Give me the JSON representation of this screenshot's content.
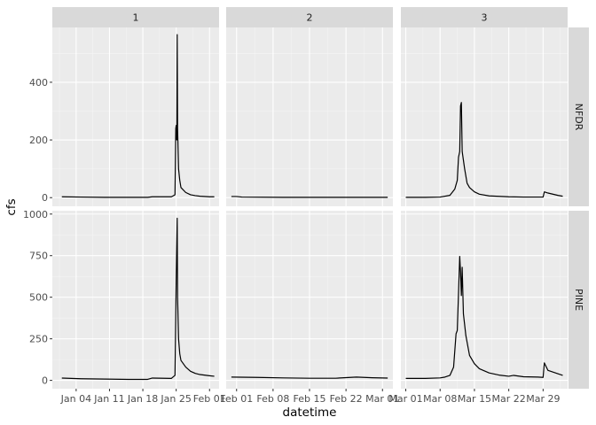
{
  "chart_data": {
    "type": "line",
    "xlabel": "datetime",
    "ylabel": "cfs",
    "columns": [
      {
        "label": "1",
        "xlim": [
          "2022-12-30",
          "2023-02-03"
        ],
        "ticks": [
          {
            "date": "2023-01-04",
            "label": "Jan 04"
          },
          {
            "date": "2023-01-11",
            "label": "Jan 11"
          },
          {
            "date": "2023-01-18",
            "label": "Jan 18"
          },
          {
            "date": "2023-01-25",
            "label": "Jan 25"
          },
          {
            "date": "2023-02-01",
            "label": "Feb 01"
          }
        ]
      },
      {
        "label": "2",
        "xlim": [
          "2023-01-30",
          "2023-03-03"
        ],
        "ticks": [
          {
            "date": "2023-02-01",
            "label": "Feb 01"
          },
          {
            "date": "2023-02-08",
            "label": "Feb 08"
          },
          {
            "date": "2023-02-15",
            "label": "Feb 15"
          },
          {
            "date": "2023-02-22",
            "label": "Feb 22"
          },
          {
            "date": "2023-03-01",
            "label": "Mar 01"
          }
        ]
      },
      {
        "label": "3",
        "xlim": [
          "2023-02-28",
          "2023-04-03"
        ],
        "ticks": [
          {
            "date": "2023-03-01",
            "label": "Mar 01"
          },
          {
            "date": "2023-03-08",
            "label": "Mar 08"
          },
          {
            "date": "2023-03-15",
            "label": "Mar 15"
          },
          {
            "date": "2023-03-22",
            "label": "Mar 22"
          },
          {
            "date": "2023-03-29",
            "label": "Mar 29"
          }
        ]
      }
    ],
    "rows": [
      {
        "label": "NFDR",
        "ylim": [
          -30,
          590
        ],
        "yticks": [
          0,
          200,
          400
        ]
      },
      {
        "label": "PINE",
        "ylim": [
          -50,
          1020
        ],
        "yticks": [
          0,
          250,
          500,
          750,
          1000
        ]
      }
    ],
    "series": [
      {
        "row": 0,
        "col": 0,
        "points": [
          [
            "2023-01-01",
            3
          ],
          [
            "2023-01-05",
            2
          ],
          [
            "2023-01-10",
            1
          ],
          [
            "2023-01-15",
            1
          ],
          [
            "2023-01-19",
            1
          ],
          [
            "2023-01-20",
            3
          ],
          [
            "2023-01-24",
            3
          ],
          [
            "2023-01-24T18:00",
            10
          ],
          [
            "2023-01-24T22:00",
            240
          ],
          [
            "2023-01-25T00:00",
            250
          ],
          [
            "2023-01-25T03:00",
            200
          ],
          [
            "2023-01-25T05:00",
            565
          ],
          [
            "2023-01-25T07:00",
            240
          ],
          [
            "2023-01-25T12:00",
            100
          ],
          [
            "2023-01-25T18:00",
            60
          ],
          [
            "2023-01-26",
            35
          ],
          [
            "2023-01-27",
            18
          ],
          [
            "2023-01-28",
            10
          ],
          [
            "2023-01-29",
            7
          ],
          [
            "2023-01-30",
            5
          ],
          [
            "2023-02-01",
            3
          ],
          [
            "2023-02-02",
            3
          ]
        ]
      },
      {
        "row": 0,
        "col": 1,
        "points": [
          [
            "2023-01-31",
            4
          ],
          [
            "2023-02-01",
            4
          ],
          [
            "2023-02-02",
            2
          ],
          [
            "2023-02-10",
            1
          ],
          [
            "2023-02-18",
            1
          ],
          [
            "2023-02-26",
            1
          ],
          [
            "2023-03-02",
            1
          ]
        ]
      },
      {
        "row": 0,
        "col": 2,
        "points": [
          [
            "2023-03-01",
            1
          ],
          [
            "2023-03-05",
            1
          ],
          [
            "2023-03-08",
            2
          ],
          [
            "2023-03-10",
            8
          ],
          [
            "2023-03-11",
            30
          ],
          [
            "2023-03-11T12:00",
            60
          ],
          [
            "2023-03-11T18:00",
            140
          ],
          [
            "2023-03-12T00:00",
            160
          ],
          [
            "2023-03-12T04:00",
            318
          ],
          [
            "2023-03-12T08:00",
            330
          ],
          [
            "2023-03-12T12:00",
            160
          ],
          [
            "2023-03-12T18:00",
            130
          ],
          [
            "2023-03-13T00:00",
            100
          ],
          [
            "2023-03-13T12:00",
            50
          ],
          [
            "2023-03-14",
            35
          ],
          [
            "2023-03-15",
            20
          ],
          [
            "2023-03-16",
            12
          ],
          [
            "2023-03-18",
            6
          ],
          [
            "2023-03-22",
            3
          ],
          [
            "2023-03-25",
            2
          ],
          [
            "2023-03-29",
            2
          ],
          [
            "2023-03-29T06:00",
            20
          ],
          [
            "2023-03-30",
            16
          ],
          [
            "2023-04-01",
            8
          ],
          [
            "2023-04-02",
            5
          ]
        ]
      },
      {
        "row": 1,
        "col": 0,
        "points": [
          [
            "2023-01-01",
            14
          ],
          [
            "2023-01-05",
            10
          ],
          [
            "2023-01-10",
            8
          ],
          [
            "2023-01-15",
            6
          ],
          [
            "2023-01-19",
            6
          ],
          [
            "2023-01-20",
            14
          ],
          [
            "2023-01-24",
            12
          ],
          [
            "2023-01-24T18:00",
            30
          ],
          [
            "2023-01-24T22:00",
            400
          ],
          [
            "2023-01-25T00:00",
            600
          ],
          [
            "2023-01-25T05:00",
            975
          ],
          [
            "2023-01-25T07:00",
            500
          ],
          [
            "2023-01-25T12:00",
            250
          ],
          [
            "2023-01-25T18:00",
            160
          ],
          [
            "2023-01-26",
            120
          ],
          [
            "2023-01-27",
            80
          ],
          [
            "2023-01-28",
            55
          ],
          [
            "2023-01-29",
            42
          ],
          [
            "2023-01-30",
            35
          ],
          [
            "2023-02-01",
            28
          ],
          [
            "2023-02-02",
            25
          ]
        ]
      },
      {
        "row": 1,
        "col": 1,
        "points": [
          [
            "2023-01-31",
            20
          ],
          [
            "2023-02-05",
            18
          ],
          [
            "2023-02-10",
            15
          ],
          [
            "2023-02-15",
            13
          ],
          [
            "2023-02-20",
            13
          ],
          [
            "2023-02-24",
            20
          ],
          [
            "2023-02-27",
            16
          ],
          [
            "2023-03-02",
            14
          ]
        ]
      },
      {
        "row": 1,
        "col": 2,
        "points": [
          [
            "2023-03-01",
            12
          ],
          [
            "2023-03-05",
            12
          ],
          [
            "2023-03-08",
            15
          ],
          [
            "2023-03-09",
            20
          ],
          [
            "2023-03-10",
            30
          ],
          [
            "2023-03-10T18:00",
            80
          ],
          [
            "2023-03-11T06:00",
            280
          ],
          [
            "2023-03-11T12:00",
            300
          ],
          [
            "2023-03-12T00:00",
            745
          ],
          [
            "2023-03-12T04:00",
            650
          ],
          [
            "2023-03-12T08:00",
            510
          ],
          [
            "2023-03-12T12:00",
            680
          ],
          [
            "2023-03-12T18:00",
            400
          ],
          [
            "2023-03-13T06:00",
            270
          ],
          [
            "2023-03-14",
            150
          ],
          [
            "2023-03-15",
            100
          ],
          [
            "2023-03-16",
            70
          ],
          [
            "2023-03-18",
            45
          ],
          [
            "2023-03-20",
            32
          ],
          [
            "2023-03-22",
            25
          ],
          [
            "2023-03-23",
            30
          ],
          [
            "2023-03-25",
            22
          ],
          [
            "2023-03-28",
            20
          ],
          [
            "2023-03-29",
            18
          ],
          [
            "2023-03-29T06:00",
            105
          ],
          [
            "2023-03-30",
            60
          ],
          [
            "2023-04-01",
            40
          ],
          [
            "2023-04-02",
            30
          ]
        ]
      }
    ]
  }
}
